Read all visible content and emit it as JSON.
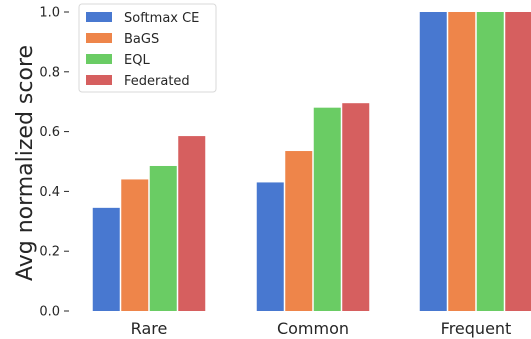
{
  "chart_data": {
    "type": "bar",
    "categories": [
      "Rare",
      "Common",
      "Frequent"
    ],
    "series": [
      {
        "name": "Softmax CE",
        "color": "#4878d0",
        "values": [
          0.345,
          0.43,
          1.0
        ]
      },
      {
        "name": "BaGS",
        "color": "#ee854a",
        "values": [
          0.44,
          0.535,
          1.0
        ]
      },
      {
        "name": "EQL",
        "color": "#6acc64",
        "values": [
          0.485,
          0.68,
          1.0
        ]
      },
      {
        "name": "Federated",
        "color": "#d65f5f",
        "values": [
          0.585,
          0.695,
          1.0
        ]
      }
    ],
    "title": "",
    "xlabel": "",
    "ylabel": "Avg normalized score",
    "ylim": [
      0,
      1.0
    ],
    "yticks": [
      "0.0",
      "0.2",
      "0.4",
      "0.6",
      "0.8",
      "1.0"
    ],
    "grid": false,
    "legend_position": "top-left"
  }
}
